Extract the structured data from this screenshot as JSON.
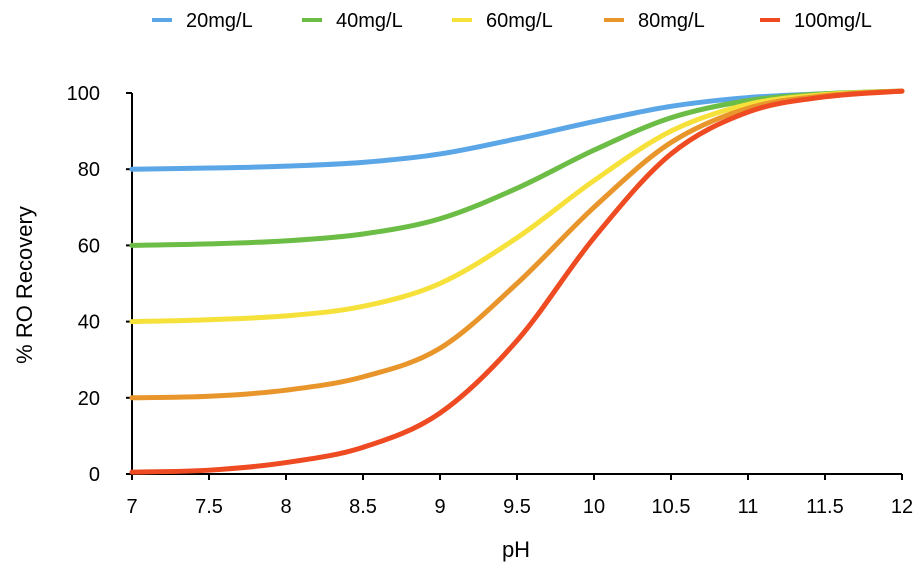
{
  "chart_data": {
    "type": "line",
    "title": "",
    "xlabel": "pH",
    "ylabel": "% RO Recovery",
    "xlim": [
      7,
      12
    ],
    "ylim": [
      0,
      100
    ],
    "x_ticks": [
      7,
      7.5,
      8,
      8.5,
      9,
      9.5,
      10,
      10.5,
      11,
      11.5,
      12
    ],
    "x_tick_labels": [
      "7",
      "7.5",
      "8",
      "8.5",
      "9",
      "9.5",
      "10",
      "10.5",
      "11",
      "11.5",
      "12"
    ],
    "y_ticks": [
      0,
      20,
      40,
      60,
      80,
      100
    ],
    "y_tick_labels": [
      "0",
      "20",
      "40",
      "60",
      "80",
      "100"
    ],
    "grid": false,
    "legend_position": "top",
    "x": [
      7,
      7.5,
      8,
      8.5,
      9,
      9.5,
      10,
      10.5,
      11,
      11.5,
      12
    ],
    "series": [
      {
        "name": "20mg/L",
        "color": "#5aa6e6",
        "values": [
          80,
          80.3,
          80.8,
          81.8,
          84,
          88,
          92.5,
          96.5,
          98.8,
          99.8,
          100.5
        ]
      },
      {
        "name": "40mg/L",
        "color": "#6cbd45",
        "values": [
          60,
          60.4,
          61.2,
          63,
          67,
          75,
          85,
          93.5,
          98,
          99.8,
          100.5
        ]
      },
      {
        "name": "60mg/L",
        "color": "#f6e13a",
        "values": [
          40,
          40.5,
          41.5,
          44,
          50,
          62,
          77,
          90,
          97,
          99.6,
          100.5
        ]
      },
      {
        "name": "80mg/L",
        "color": "#e8962b",
        "values": [
          20,
          20.4,
          22,
          25.5,
          33,
          50,
          70,
          87,
          96,
          99.3,
          100.5
        ]
      },
      {
        "name": "100mg/L",
        "color": "#ee4b22",
        "values": [
          0.5,
          1,
          3,
          7,
          16,
          35,
          62,
          84,
          95,
          99,
          100.5
        ]
      }
    ]
  }
}
